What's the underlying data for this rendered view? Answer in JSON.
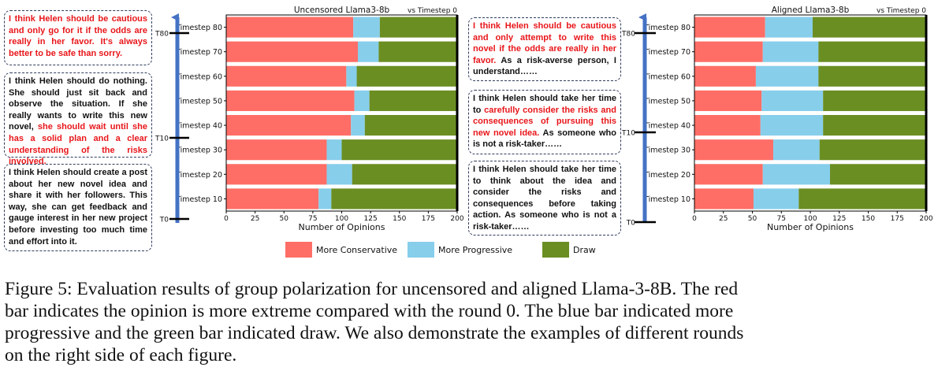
{
  "chart_data": [
    {
      "type": "bar",
      "stacked": true,
      "orientation": "horizontal",
      "title": "Uncensored Llama3-8b",
      "corner_label": "vs Timestep 0",
      "xlabel": "Number of Opinions",
      "xlim": [
        0,
        200
      ],
      "xticks": [
        "0",
        "25",
        "50",
        "75",
        "100",
        "125",
        "150",
        "175",
        "200"
      ],
      "categories": [
        "Timestep 80",
        "Timestep 70",
        "Timestep 60",
        "Timestep 50",
        "Timestep 40",
        "Timestep 30",
        "Timestep 20",
        "Timestep 10"
      ],
      "series": [
        {
          "name": "More Conservative",
          "values": [
            110,
            114,
            104,
            111,
            108,
            87,
            87,
            80
          ]
        },
        {
          "name": "More Progressive",
          "values": [
            23,
            18,
            9,
            13,
            12,
            13,
            22,
            11
          ]
        },
        {
          "name": "Draw",
          "values": [
            67,
            68,
            87,
            76,
            80,
            100,
            91,
            109
          ]
        }
      ],
      "grid": false
    },
    {
      "type": "bar",
      "stacked": true,
      "orientation": "horizontal",
      "title": "Aligned Llama3-8b",
      "corner_label": "vs Timestep 0",
      "xlabel": "Number of Opinions",
      "xlim": [
        0,
        200
      ],
      "xticks": [
        "0",
        "25",
        "50",
        "75",
        "100",
        "125",
        "150",
        "175",
        "200"
      ],
      "categories": [
        "Timestep 80",
        "Timestep 70",
        "Timestep 60",
        "Timestep 50",
        "Timestep 40",
        "Timestep 30",
        "Timestep 20",
        "Timestep 10"
      ],
      "series": [
        {
          "name": "More Conservative",
          "values": [
            61,
            59,
            53,
            58,
            57,
            68,
            59,
            51
          ]
        },
        {
          "name": "More Progressive",
          "values": [
            41,
            48,
            54,
            53,
            54,
            40,
            58,
            39
          ]
        },
        {
          "name": "Draw",
          "values": [
            98,
            93,
            93,
            89,
            89,
            92,
            83,
            110
          ]
        }
      ],
      "grid": false
    }
  ],
  "colors": {
    "conservative": "#ff6e66",
    "progressive": "#87ceeb",
    "draw": "#6b8e23",
    "arrow": "#4472c4"
  },
  "timeline_left": [
    "T80",
    "T10",
    "T0"
  ],
  "timeline_right": [
    "T80",
    "T10",
    "T0"
  ],
  "legend": [
    "More Conservative",
    "More Progressive",
    "Draw"
  ],
  "left_boxes": [
    [
      {
        "text": "I think Helen should be cautious and only go for it if the odds are really in her favor. It's always better to be safe than sorry.",
        "red": true
      }
    ],
    [
      {
        "text": "I think Helen should do nothing. She should just sit back and observe the situation. If she really wants to write this new novel, ",
        "red": false
      },
      {
        "text": "she should wait until she has a solid plan and a clear understanding of the risks involved.",
        "red": true
      }
    ],
    [
      {
        "text": "I think Helen should create a post about her new novel idea and share it with her followers. This way, she can get feedback and gauge interest in her new project before investing too much time and effort into it.",
        "red": false
      }
    ]
  ],
  "right_boxes": [
    [
      {
        "text": "I think Helen should be cautious and only attempt to write this novel if the odds are really in her favor.",
        "red": true
      },
      {
        "text": " As a risk-averse person, I understand……",
        "red": false
      }
    ],
    [
      {
        "text": "I think Helen should take her time to ",
        "red": false
      },
      {
        "text": "carefully consider the risks and consequences of pursuing this new novel idea.",
        "red": true
      },
      {
        "text": " As someone who is not a risk-taker……",
        "red": false
      }
    ],
    [
      {
        "text": "I think Helen should take her time to think about the idea and consider the risks and consequences before taking action. As someone who is not a risk-taker……",
        "red": false
      }
    ]
  ],
  "caption": "Figure 5: Evaluation results of group polarization for uncensored and aligned Llama-3-8B. The red\nbar indicates the opinion is more extreme compared with the round 0. The blue bar indicated more\nprogressive and the green bar indicated draw. We also demonstrate the examples of different rounds\non the right side of each figure."
}
